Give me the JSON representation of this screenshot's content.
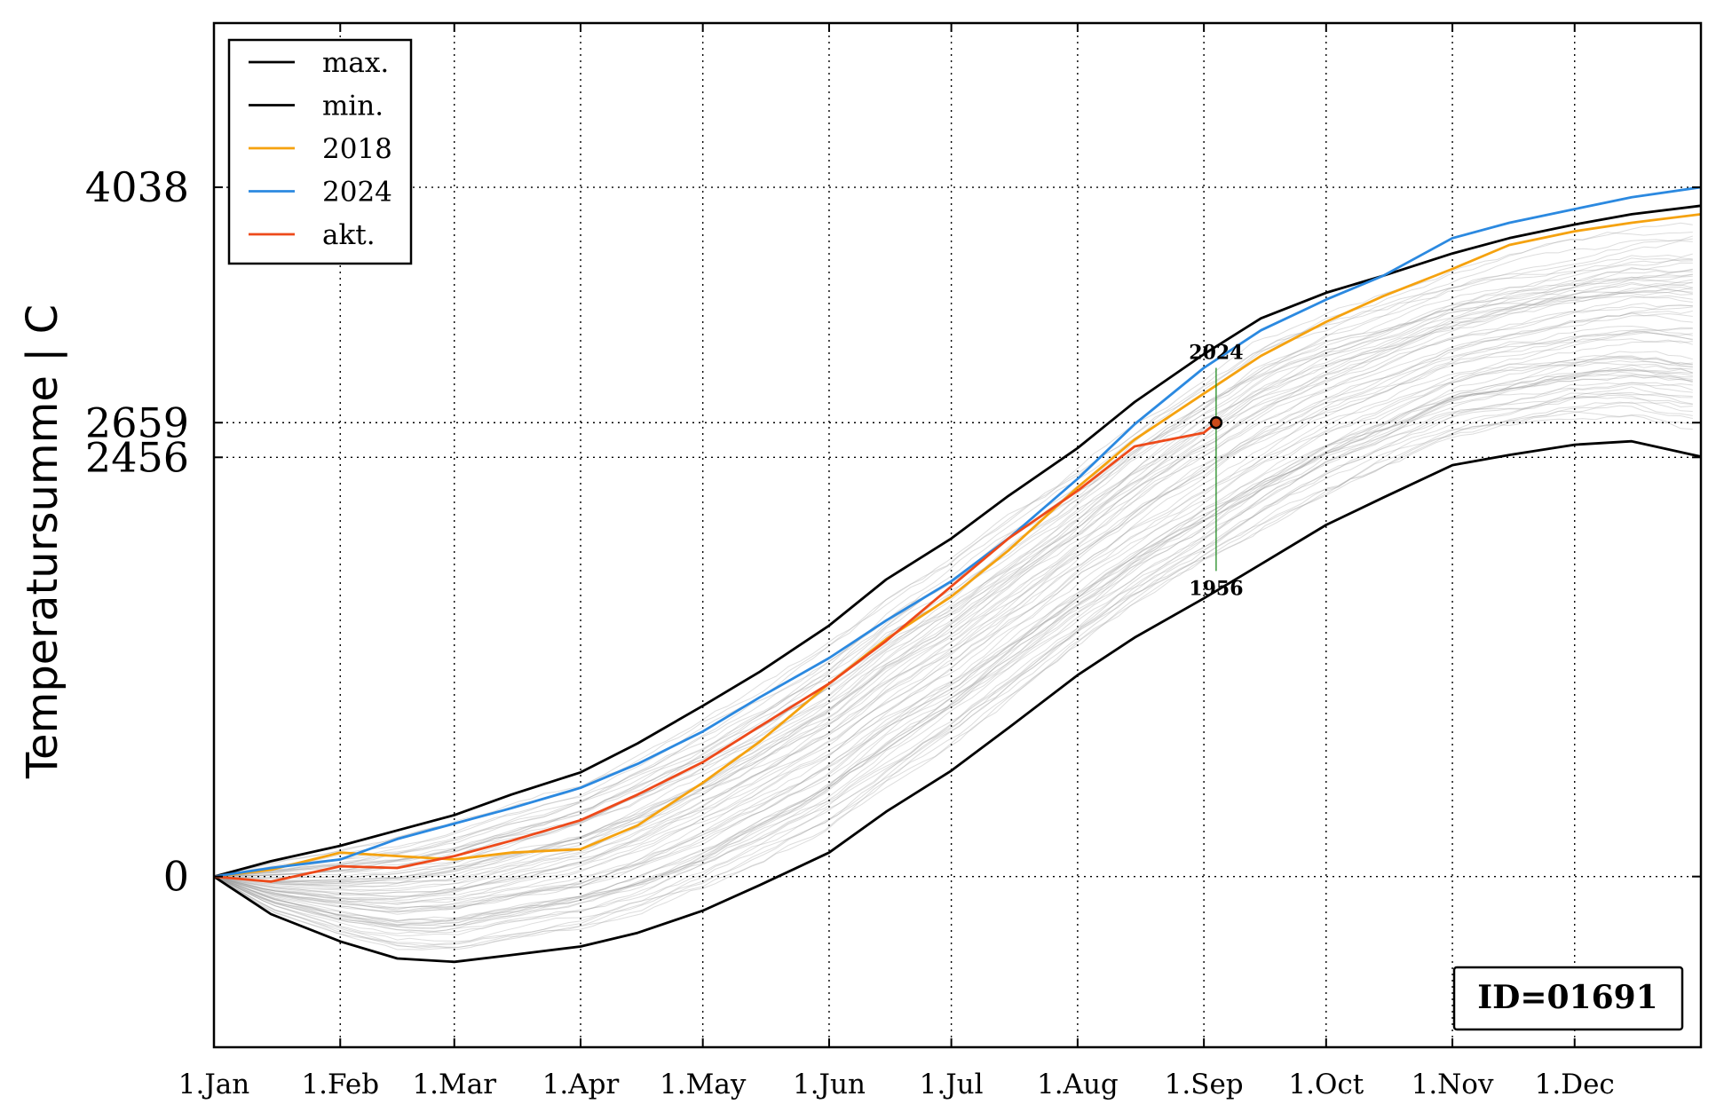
{
  "chart_data": {
    "type": "line",
    "title": "",
    "ylabel": "Temperatursumme | C",
    "xlabel": "",
    "xlim": [
      1,
      366
    ],
    "ylim": [
      -1000,
      5000
    ],
    "x_ticks": [
      {
        "day": 1,
        "label": "1.Jan"
      },
      {
        "day": 32,
        "label": "1.Feb"
      },
      {
        "day": 60,
        "label": "1.Mar"
      },
      {
        "day": 91,
        "label": "1.Apr"
      },
      {
        "day": 121,
        "label": "1.May"
      },
      {
        "day": 152,
        "label": "1.Jun"
      },
      {
        "day": 182,
        "label": "1.Jul"
      },
      {
        "day": 213,
        "label": "1.Aug"
      },
      {
        "day": 244,
        "label": "1.Sep"
      },
      {
        "day": 274,
        "label": "1.Oct"
      },
      {
        "day": 305,
        "label": "1.Nov"
      },
      {
        "day": 335,
        "label": "1.Dec"
      }
    ],
    "y_ticks": [
      {
        "value": 0,
        "label": "0"
      },
      {
        "value": 2456,
        "label": "2456"
      },
      {
        "value": 2659,
        "label": "2659"
      },
      {
        "value": 4038,
        "label": "4038"
      }
    ],
    "grid": true,
    "legend_position": "top-left",
    "series": [
      {
        "name": "max.",
        "color": "#000000",
        "x": [
          1,
          15,
          32,
          46,
          60,
          74,
          91,
          105,
          121,
          135,
          152,
          166,
          182,
          196,
          213,
          227,
          244,
          258,
          274,
          288,
          305,
          319,
          335,
          349,
          366
        ],
        "y": [
          0,
          90,
          180,
          270,
          360,
          480,
          610,
          780,
          1000,
          1200,
          1470,
          1740,
          1980,
          2230,
          2510,
          2780,
          3060,
          3270,
          3420,
          3520,
          3650,
          3740,
          3820,
          3880,
          3930
        ]
      },
      {
        "name": "min.",
        "color": "#000000",
        "x": [
          1,
          15,
          32,
          46,
          60,
          74,
          91,
          105,
          121,
          135,
          152,
          166,
          182,
          196,
          213,
          227,
          244,
          258,
          274,
          288,
          305,
          319,
          335,
          349,
          366
        ],
        "y": [
          0,
          -220,
          -380,
          -480,
          -500,
          -460,
          -410,
          -330,
          -200,
          -50,
          140,
          380,
          620,
          870,
          1180,
          1400,
          1630,
          1830,
          2060,
          2220,
          2410,
          2470,
          2530,
          2550,
          2460
        ]
      },
      {
        "name": "2018",
        "color": "#f5a20f",
        "x": [
          1,
          15,
          32,
          46,
          60,
          74,
          91,
          105,
          121,
          135,
          152,
          166,
          182,
          196,
          213,
          227,
          244,
          258,
          274,
          288,
          305,
          319,
          335,
          349,
          366
        ],
        "y": [
          0,
          40,
          140,
          120,
          100,
          140,
          160,
          300,
          550,
          790,
          1130,
          1390,
          1640,
          1910,
          2280,
          2560,
          2830,
          3050,
          3250,
          3400,
          3560,
          3700,
          3780,
          3830,
          3880
        ]
      },
      {
        "name": "2024",
        "color": "#2b89e0",
        "x": [
          1,
          15,
          32,
          46,
          60,
          74,
          91,
          105,
          121,
          135,
          152,
          166,
          182,
          196,
          213,
          227,
          244,
          258,
          274,
          288,
          305,
          319,
          335,
          349,
          366
        ],
        "y": [
          0,
          50,
          100,
          220,
          310,
          400,
          520,
          660,
          850,
          1050,
          1280,
          1500,
          1730,
          1980,
          2330,
          2650,
          2980,
          3200,
          3380,
          3520,
          3740,
          3830,
          3910,
          3980,
          4038
        ]
      },
      {
        "name": "akt.",
        "color": "#ee4a1a",
        "x": [
          1,
          15,
          32,
          46,
          60,
          74,
          91,
          105,
          121,
          135,
          152,
          166,
          182,
          196,
          213,
          227,
          244,
          247
        ],
        "y": [
          0,
          -30,
          60,
          50,
          120,
          210,
          330,
          480,
          670,
          880,
          1130,
          1380,
          1700,
          1980,
          2260,
          2520,
          2600,
          2659
        ]
      }
    ],
    "current_marker": {
      "x": 247,
      "y": 2659,
      "color": "#cc4b1a"
    },
    "range_annotation": {
      "x": 247,
      "y_top": 2980,
      "y_bottom": 1790,
      "top_label": "2024",
      "bottom_label": "1956",
      "color": "#228b22"
    },
    "id_box": "ID=01691",
    "background_color": "#9e9e9e"
  }
}
